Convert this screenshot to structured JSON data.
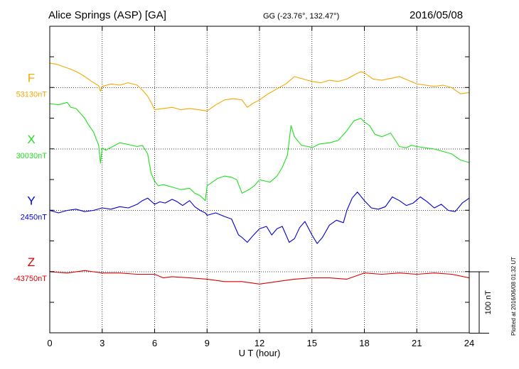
{
  "header": {
    "station": "Alice Springs (ASP)  [GA]",
    "coords": "GG (-23.76°, 132.47°)",
    "date": "2016/05/08"
  },
  "footer": {
    "plotted_note": "Plotted at 2016/06/08 01:32 UT"
  },
  "scale_bar": {
    "label": "100 nT",
    "value_nT": 100
  },
  "chart_data": {
    "type": "line",
    "xlabel": "U T (hour)",
    "xlim": [
      0,
      24
    ],
    "xticks": [
      0,
      3,
      6,
      9,
      12,
      15,
      18,
      21,
      24
    ],
    "grid": true,
    "vertical_scale_nT_per_division": 50,
    "series": [
      {
        "name": "F",
        "baseline_label": "53130nT",
        "baseline_nT": 53130,
        "color": "#f5a800",
        "unit": "nT",
        "x": [
          0,
          0.4,
          0.8,
          1.2,
          1.6,
          2.0,
          2.4,
          2.8,
          2.9,
          3.0,
          3.5,
          4.0,
          4.5,
          5.0,
          5.3,
          5.6,
          5.8,
          6.0,
          6.5,
          7.0,
          7.5,
          8.0,
          8.5,
          9.0,
          9.5,
          10.0,
          10.5,
          11.0,
          11.3,
          11.6,
          12.0,
          12.5,
          13.0,
          13.5,
          14.0,
          14.5,
          15.0,
          15.5,
          16.0,
          16.5,
          17.0,
          17.5,
          17.8,
          18.0,
          18.5,
          19.0,
          20.0,
          21.0,
          21.5,
          22.0,
          22.5,
          23.0,
          23.5,
          24.0
        ],
        "y": [
          40,
          38,
          34,
          30,
          25,
          18,
          10,
          3,
          -6,
          2,
          6,
          4,
          8,
          4,
          -4,
          -14,
          -24,
          -36,
          -34,
          -32,
          -36,
          -34,
          -36,
          -38,
          -28,
          -20,
          -18,
          -20,
          -32,
          -26,
          -20,
          -10,
          -2,
          6,
          18,
          14,
          10,
          8,
          12,
          10,
          14,
          22,
          26,
          24,
          14,
          12,
          18,
          6,
          4,
          2,
          4,
          0,
          -10,
          -8
        ]
      },
      {
        "name": "X",
        "baseline_label": "30030nT",
        "baseline_nT": 30030,
        "color": "#1ee01e",
        "unit": "nT",
        "x": [
          0,
          0.5,
          1.0,
          1.2,
          1.5,
          2.0,
          2.2,
          2.5,
          2.8,
          2.9,
          3.0,
          3.2,
          3.6,
          4.0,
          4.4,
          5.0,
          5.3,
          5.6,
          5.8,
          6.0,
          6.2,
          6.5,
          7.0,
          7.5,
          8.0,
          8.3,
          8.6,
          8.9,
          9.0,
          9.3,
          9.6,
          10.0,
          10.4,
          10.7,
          11.0,
          11.4,
          11.7,
          12.0,
          12.3,
          12.6,
          13.0,
          13.3,
          13.6,
          13.8,
          14.0,
          14.4,
          14.8,
          15.0,
          15.4,
          16.0,
          16.5,
          17.0,
          17.4,
          17.8,
          18.0,
          18.3,
          18.6,
          19.0,
          19.5,
          20.0,
          20.4,
          20.7,
          21.0,
          21.5,
          22.0,
          22.5,
          23.0,
          23.5,
          24.0
        ],
        "y": [
          74,
          72,
          76,
          68,
          66,
          50,
          40,
          28,
          6,
          -23,
          2,
          -2,
          4,
          10,
          8,
          4,
          6,
          -8,
          -40,
          -52,
          -60,
          -58,
          -62,
          -66,
          -64,
          -72,
          -76,
          -84,
          -60,
          -54,
          -48,
          -44,
          -46,
          -50,
          -72,
          -66,
          -60,
          -50,
          -52,
          -54,
          -44,
          -30,
          -10,
          38,
          20,
          6,
          4,
          2,
          8,
          10,
          14,
          30,
          46,
          50,
          44,
          38,
          24,
          20,
          26,
          4,
          2,
          6,
          4,
          2,
          0,
          -4,
          -8,
          -18,
          -22
        ]
      },
      {
        "name": "Y",
        "baseline_label": "2450nT",
        "baseline_nT": 2450,
        "color": "#0000d2",
        "unit": "nT",
        "x": [
          0,
          0.5,
          1.0,
          1.5,
          2.0,
          2.5,
          3.0,
          3.5,
          4.0,
          4.5,
          5.0,
          5.3,
          5.6,
          6.0,
          6.3,
          6.6,
          7.0,
          7.3,
          7.6,
          8.0,
          8.3,
          8.6,
          8.9,
          9.0,
          9.5,
          10.0,
          10.4,
          10.8,
          11.0,
          11.3,
          11.6,
          12.0,
          12.4,
          12.7,
          13.0,
          13.3,
          13.7,
          14.0,
          14.3,
          14.6,
          15.0,
          15.3,
          15.6,
          16.0,
          16.4,
          16.8,
          17.0,
          17.3,
          17.6,
          18.0,
          18.4,
          18.8,
          19.2,
          19.6,
          20.0,
          20.4,
          20.8,
          21.2,
          21.6,
          22.0,
          22.4,
          22.8,
          23.2,
          23.6,
          24.0
        ],
        "y": [
          0,
          -4,
          0,
          2,
          -2,
          0,
          4,
          2,
          6,
          4,
          10,
          16,
          20,
          10,
          14,
          12,
          18,
          14,
          8,
          16,
          6,
          0,
          -4,
          -8,
          -4,
          -10,
          -14,
          -40,
          -44,
          -52,
          -42,
          -30,
          -26,
          -40,
          -30,
          -26,
          -52,
          -46,
          -28,
          -18,
          -40,
          -54,
          -44,
          -24,
          -16,
          -20,
          0,
          20,
          30,
          16,
          4,
          2,
          6,
          22,
          16,
          8,
          12,
          22,
          14,
          4,
          10,
          0,
          -2,
          12,
          20
        ]
      },
      {
        "name": "Z",
        "baseline_label": "-43750nT",
        "baseline_nT": -43750,
        "color": "#dc0000",
        "unit": "nT",
        "x": [
          0,
          1,
          2,
          3,
          4,
          5,
          6,
          6.5,
          7,
          8,
          9,
          10,
          11,
          12,
          12.5,
          13,
          14,
          15,
          16,
          17,
          18,
          19,
          20,
          21,
          22,
          23,
          24
        ],
        "y": [
          0,
          -2,
          2,
          -2,
          -2,
          -4,
          -4,
          -10,
          -8,
          -10,
          -12,
          -16,
          -16,
          -20,
          -18,
          -16,
          -12,
          -10,
          -10,
          -12,
          -2,
          -4,
          -2,
          -4,
          -2,
          -4,
          -10
        ]
      }
    ]
  }
}
